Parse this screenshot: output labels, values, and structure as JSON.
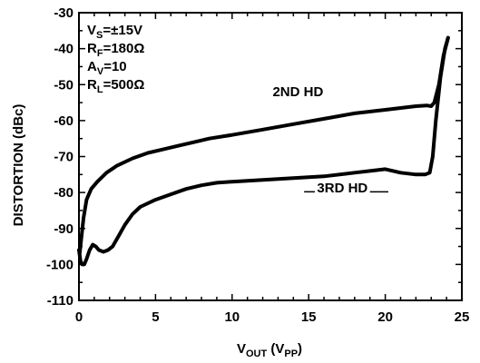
{
  "chart_data": {
    "type": "line",
    "xlabel": {
      "main": "V",
      "sub": "OUT",
      "rest_open": " (V",
      "rest_sub": "PP",
      "rest_close": ")"
    },
    "ylabel": "DISTORTION (dBc)",
    "xlim": [
      0,
      25
    ],
    "ylim": [
      -110,
      -30
    ],
    "xticks": [
      0,
      5,
      10,
      15,
      20,
      25
    ],
    "yticks": [
      -30,
      -40,
      -50,
      -60,
      -70,
      -80,
      -90,
      -100,
      -110
    ],
    "grid": false,
    "conditions": [
      {
        "main": "V",
        "sub": "S",
        "rest": "=±15V"
      },
      {
        "main": "R",
        "sub": "F",
        "rest": "=180Ω"
      },
      {
        "main": "A",
        "sub": "V",
        "rest": "=10"
      },
      {
        "main": "R",
        "sub": "L",
        "rest": "=500Ω"
      }
    ],
    "series": [
      {
        "name": "2ND HD",
        "x": [
          0.05,
          0.15,
          0.3,
          0.5,
          0.8,
          1.2,
          1.8,
          2.5,
          3.5,
          4.5,
          5.5,
          6.5,
          7.5,
          8.5,
          10,
          12,
          14,
          16,
          18,
          20,
          21,
          22,
          22.7,
          23.0,
          23.2,
          23.5,
          23.8,
          24.1
        ],
        "y": [
          -97,
          -93,
          -87,
          -82,
          -79,
          -77,
          -74.5,
          -72.5,
          -70.5,
          -69,
          -68,
          -67,
          -66,
          -65,
          -64,
          -62.5,
          -61,
          -59.5,
          -58,
          -57,
          -56.5,
          -56,
          -55.8,
          -56,
          -55,
          -50,
          -42,
          -37
        ]
      },
      {
        "name": "3RD HD",
        "x": [
          0,
          0.1,
          0.2,
          0.35,
          0.5,
          0.7,
          0.9,
          1.1,
          1.3,
          1.6,
          1.9,
          2.2,
          2.6,
          3.0,
          3.5,
          4.0,
          4.5,
          5.0,
          6.0,
          7.0,
          8.0,
          9.0,
          10,
          12,
          14,
          16,
          18,
          19,
          20,
          21,
          22,
          22.6,
          22.9,
          23.1,
          23.3,
          23.6,
          23.9,
          24.1
        ],
        "y": [
          -96,
          -99,
          -100,
          -100,
          -98.5,
          -96,
          -94.5,
          -95,
          -96,
          -96.5,
          -96,
          -95,
          -92,
          -89,
          -86,
          -84,
          -83,
          -82,
          -80.5,
          -79,
          -78,
          -77.3,
          -77,
          -76.5,
          -76,
          -75.5,
          -74.5,
          -74,
          -73.5,
          -74.5,
          -75,
          -75,
          -74.5,
          -70,
          -60,
          -48,
          -40,
          -37
        ]
      }
    ],
    "annotations": [
      {
        "text": "2ND HD",
        "series": "2ND HD"
      },
      {
        "text": "3RD HD",
        "series": "3RD HD"
      }
    ]
  }
}
